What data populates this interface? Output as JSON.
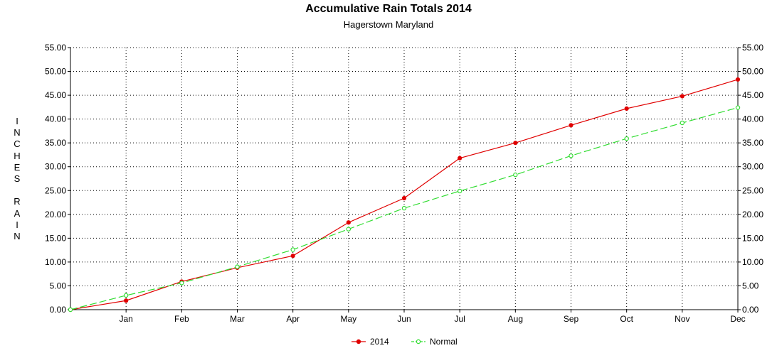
{
  "chart_data": {
    "type": "line",
    "title": "Accumulative Rain Totals 2014",
    "subtitle": "Hagerstown Maryland",
    "ylabel": "INCHES RAIN",
    "categories": [
      "",
      "Jan",
      "Feb",
      "Mar",
      "Apr",
      "May",
      "Jun",
      "Jul",
      "Aug",
      "Sep",
      "Oct",
      "Nov",
      "Dec"
    ],
    "ylim": [
      0,
      55
    ],
    "ytick_step": 5,
    "ytick_labels": [
      "0.00",
      "5.00",
      "10.00",
      "15.00",
      "20.00",
      "25.00",
      "30.00",
      "35.00",
      "40.00",
      "45.00",
      "50.00",
      "55.00"
    ],
    "grid": true,
    "legend_position": "bottom",
    "series": [
      {
        "name": "2014",
        "color": "#e00000",
        "dash": "solid",
        "values": [
          0.0,
          1.9,
          5.9,
          8.8,
          11.3,
          18.3,
          23.4,
          31.8,
          35.0,
          38.7,
          42.2,
          44.8,
          48.3
        ]
      },
      {
        "name": "Normal",
        "color": "#33dd33",
        "dash": "dashed",
        "values": [
          0.0,
          3.0,
          5.6,
          9.0,
          12.6,
          16.9,
          21.3,
          24.9,
          28.3,
          32.3,
          35.9,
          39.2,
          42.4
        ]
      }
    ]
  }
}
